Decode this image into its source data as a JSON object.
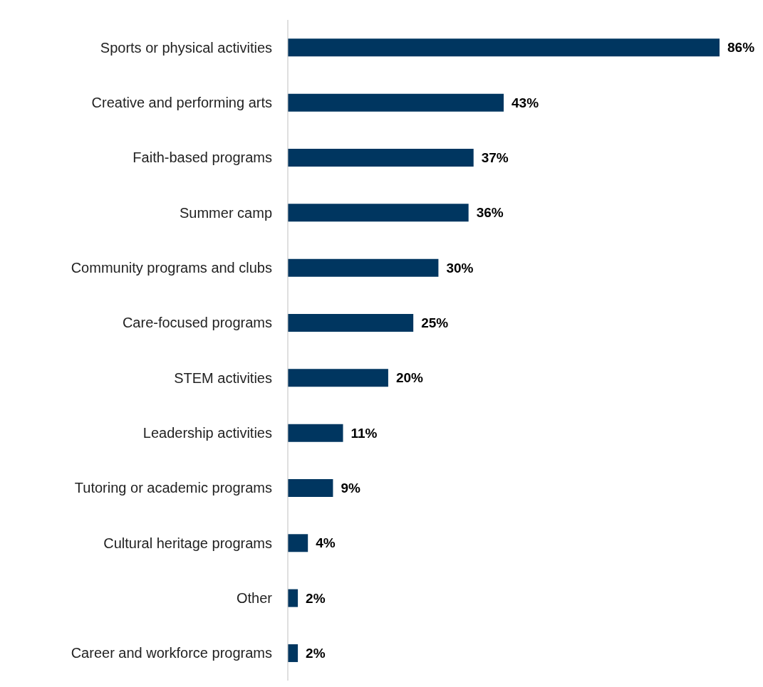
{
  "chart_data": {
    "type": "bar",
    "orientation": "horizontal",
    "categories": [
      "Sports or physical activities",
      "Creative and performing arts",
      "Faith-based programs",
      "Summer camp",
      "Community programs and clubs",
      "Care-focused programs",
      "STEM activities",
      "Leadership activities",
      "Tutoring or academic programs",
      "Cultural heritage programs",
      "Other",
      "Career and workforce programs"
    ],
    "values": [
      86,
      43,
      37,
      36,
      30,
      25,
      20,
      11,
      9,
      4,
      2,
      2
    ],
    "value_labels": [
      "86%",
      "43%",
      "37%",
      "36%",
      "30%",
      "25%",
      "20%",
      "11%",
      "9%",
      "4%",
      "2%",
      "2%"
    ],
    "color": "#003660",
    "grid": false,
    "legend": false
  }
}
